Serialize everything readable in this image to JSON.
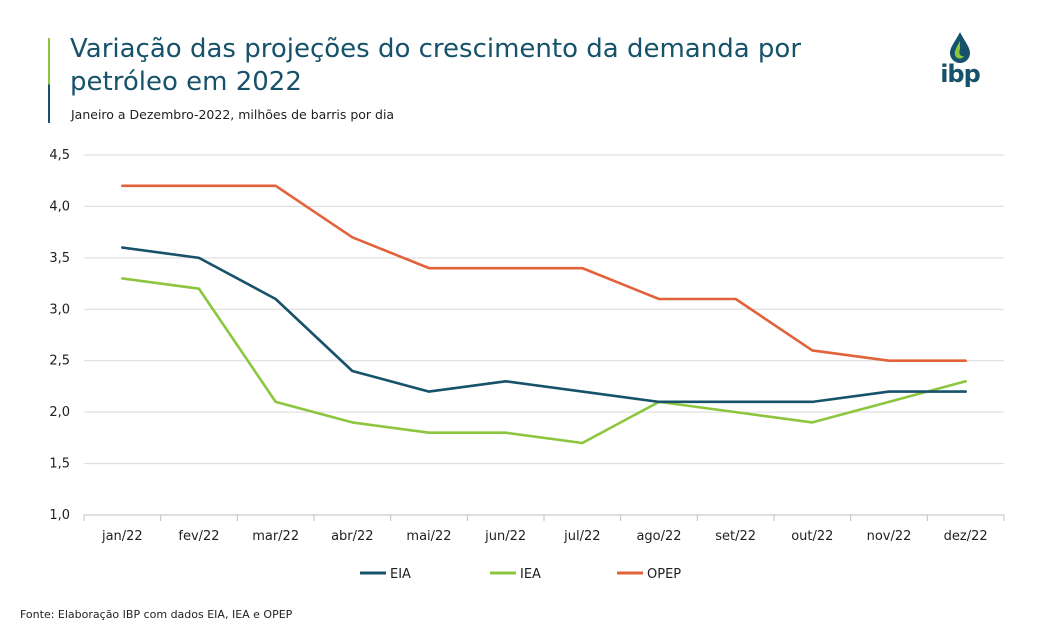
{
  "header": {
    "title_line1": "Variação das projeções do crescimento da demanda por",
    "title_line2": "petróleo em 2022",
    "subtitle": "Janeiro a Dezembro-2022, milhões de barris por dia",
    "accent_color": "#8cc63f",
    "title_color": "#17526b"
  },
  "logo": {
    "text": "ibp",
    "icon": "oil-drop-flame-icon"
  },
  "footer": {
    "source": "Fonte: Elaboração IBP com dados EIA, IEA e OPEP"
  },
  "chart_data": {
    "type": "line",
    "categories": [
      "jan/22",
      "fev/22",
      "mar/22",
      "abr/22",
      "mai/22",
      "jun/22",
      "jul/22",
      "ago/22",
      "set/22",
      "out/22",
      "nov/22",
      "dez/22"
    ],
    "yticks": [
      "1,0",
      "1,5",
      "2,0",
      "2,5",
      "3,0",
      "3,5",
      "4,0",
      "4,5"
    ],
    "ylim": [
      1.0,
      4.5
    ],
    "grid": true,
    "legend_position": "bottom",
    "series": [
      {
        "name": "EIA",
        "color": "#17526b",
        "values": [
          3.6,
          3.5,
          3.1,
          2.4,
          2.2,
          2.3,
          2.2,
          2.1,
          2.1,
          2.1,
          2.2,
          2.2
        ]
      },
      {
        "name": "IEA",
        "color": "#8cc63f",
        "values": [
          3.3,
          3.2,
          2.1,
          1.9,
          1.8,
          1.8,
          1.7,
          2.1,
          2.0,
          1.9,
          2.1,
          2.3
        ]
      },
      {
        "name": "OPEP",
        "color": "#e2623a",
        "values": [
          4.2,
          4.2,
          4.2,
          3.7,
          3.4,
          3.4,
          3.4,
          3.1,
          3.1,
          2.6,
          2.5,
          2.5
        ]
      }
    ]
  }
}
